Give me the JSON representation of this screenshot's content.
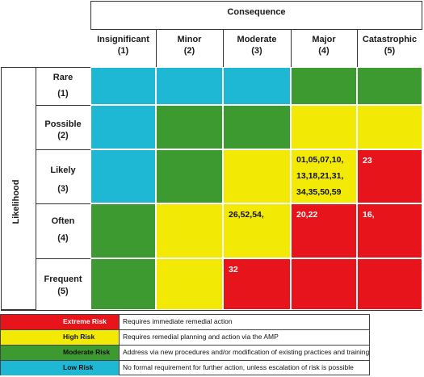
{
  "matrix": {
    "consequence_title": "Consequence",
    "likelihood_title": "Likelihood",
    "columns": [
      {
        "name": "Insignificant",
        "code": "(1)"
      },
      {
        "name": "Minor",
        "code": "(2)"
      },
      {
        "name": "Moderate",
        "code": "(3)"
      },
      {
        "name": "Major",
        "code": "(4)"
      },
      {
        "name": "Catastrophic",
        "code": "(5)"
      }
    ],
    "rows": [
      {
        "name": "Rare",
        "code": "(1)",
        "levels": [
          "low",
          "low",
          "low",
          "moderate",
          "moderate"
        ],
        "items": [
          "",
          "",
          "",
          "",
          ""
        ]
      },
      {
        "name": "Possible",
        "code": "(2)",
        "levels": [
          "low",
          "moderate",
          "moderate",
          "high",
          "high"
        ],
        "items": [
          "",
          "",
          "",
          "",
          ""
        ]
      },
      {
        "name": "Likely",
        "code": "(3)",
        "levels": [
          "low",
          "moderate",
          "high",
          "high",
          "extreme"
        ],
        "items": [
          "",
          "",
          "",
          "01,05,07,10,\n13,18,21,31,\n34,35,50,59",
          "23"
        ]
      },
      {
        "name": "Often",
        "code": "(4)",
        "levels": [
          "moderate",
          "high",
          "high",
          "extreme",
          "extreme"
        ],
        "items": [
          "",
          "",
          "26,52,54,",
          "20,22",
          "16,"
        ]
      },
      {
        "name": "Frequent",
        "code": "(5)",
        "levels": [
          "moderate",
          "high",
          "extreme",
          "extreme",
          "extreme"
        ],
        "items": [
          "",
          "",
          "32",
          "",
          ""
        ]
      }
    ]
  },
  "colors": {
    "extreme": "#e8141b",
    "high": "#f2ea05",
    "moderate": "#3d9a30",
    "low": "#1eb7d4"
  },
  "legend": [
    {
      "level": "extreme",
      "label": "Extreme Risk",
      "description": "Requires immediate remedial action"
    },
    {
      "level": "high",
      "label": "High Risk",
      "description": "Requires remedial planning and action via the AMP"
    },
    {
      "level": "moderate",
      "label": "Moderate Risk",
      "description": "Address via new procedures and/or modification of existing practices and training"
    },
    {
      "level": "low",
      "label": "Low Risk",
      "description": "No formal requirement for further action, unless escalation of risk is possible"
    }
  ]
}
